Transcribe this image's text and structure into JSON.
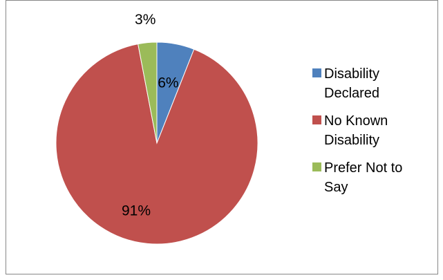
{
  "chart_data": {
    "type": "pie",
    "categories": [
      "Disability Declared",
      "No Known Disability",
      "Prefer Not to Say"
    ],
    "values": [
      6,
      91,
      3
    ],
    "labels": [
      "6%",
      "91%",
      "3%"
    ],
    "colors": [
      "#4F81BD",
      "#C0504D",
      "#9BBB59"
    ],
    "legend_position": "right",
    "legend": [
      {
        "label": "Disability Declared",
        "color": "#4F81BD"
      },
      {
        "label": "No Known Disability",
        "color": "#C0504D"
      },
      {
        "label": "Prefer Not to Say",
        "color": "#9BBB59"
      }
    ]
  }
}
